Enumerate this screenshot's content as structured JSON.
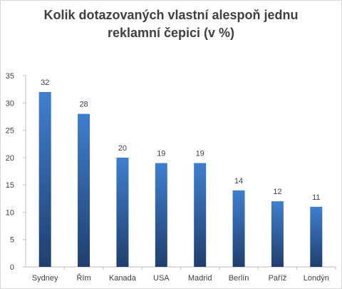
{
  "chart_data": {
    "type": "bar",
    "title_lines": [
      "Kolik dotazovaných vlastní alespoň jednu",
      "reklamní čepici (v %)"
    ],
    "categories": [
      "Sydney",
      "Řím",
      "Kanada",
      "USA",
      "Madrid",
      "Berlín",
      "Paříž",
      "Londýn"
    ],
    "values": [
      32,
      28,
      20,
      19,
      19,
      14,
      12,
      11
    ],
    "ylim": [
      0,
      35
    ],
    "yticks": [
      0,
      5,
      10,
      15,
      20,
      25,
      30,
      35
    ],
    "data_labels": true,
    "grid": false,
    "legend": "none",
    "colors": {
      "bar_top": "#3f7fcf",
      "bar_bottom": "#203f6e",
      "axis": "#bfbfbf",
      "text": "#404040"
    }
  }
}
